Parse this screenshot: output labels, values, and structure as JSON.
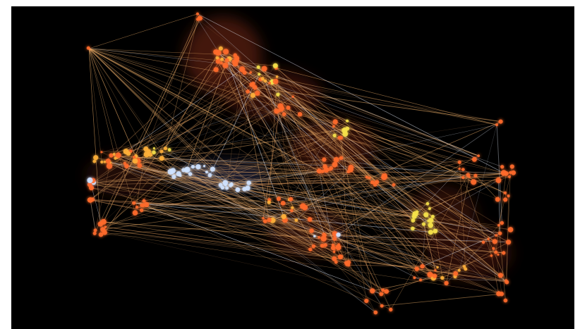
{
  "image": {
    "subject": "",
    "colors": {
      "background": "#000000",
      "node_orange": "#ff6a2a",
      "node_amber": "#ffb03a",
      "node_yellow": "#f6e24a",
      "node_blue": "#cfe2ff",
      "link": "#f3b36b",
      "link_faint": "#c98a52",
      "glow_orange": "#ff5a1f"
    }
  }
}
